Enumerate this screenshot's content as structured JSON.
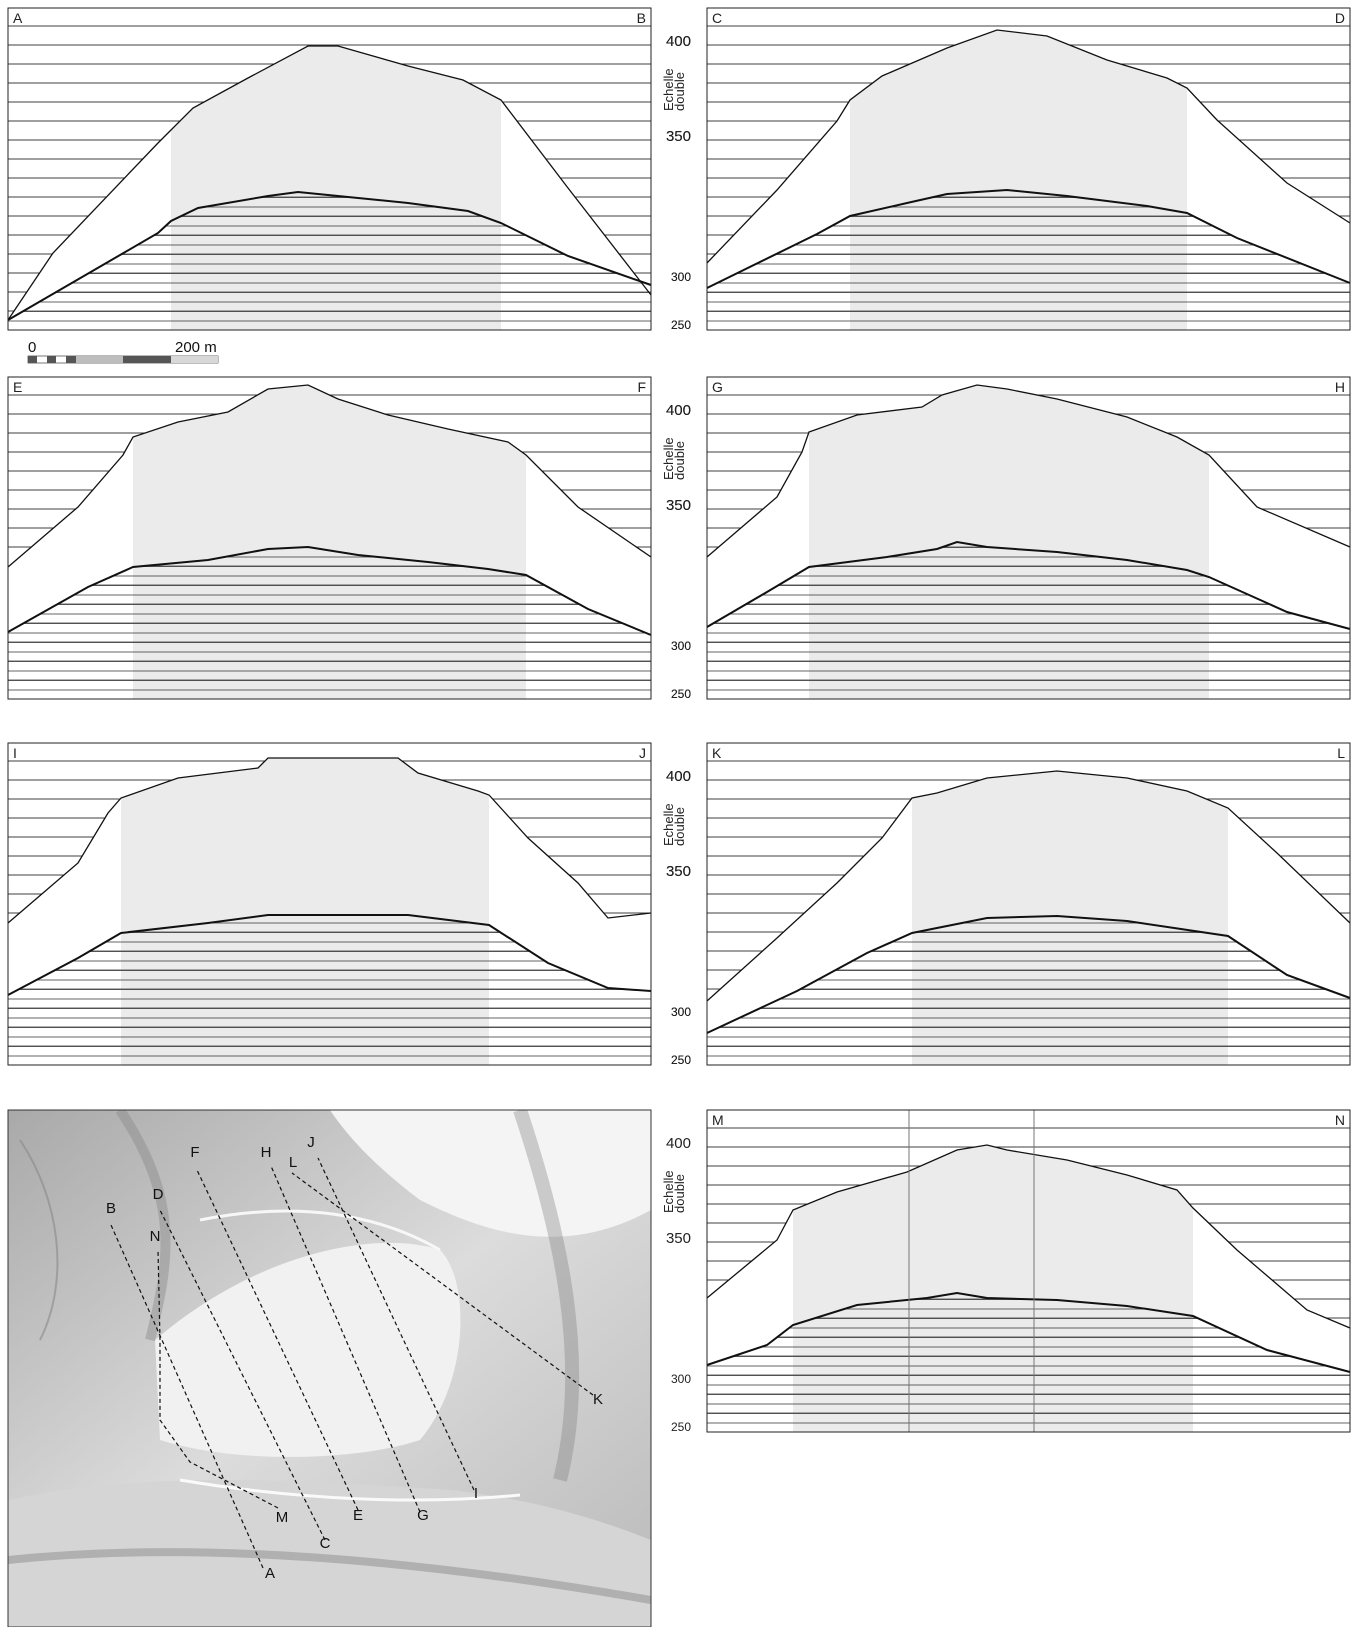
{
  "figure": {
    "scale_bar": {
      "label_start": "0",
      "label_end": "200 m"
    },
    "scale_text": "Echelle double",
    "scale_text_lines": [
      "Echelle",
      "double"
    ],
    "profiles": [
      {
        "start": "A",
        "end": "B",
        "ticks": [
          "400",
          "350",
          "300",
          "250"
        ]
      },
      {
        "start": "C",
        "end": "D",
        "ticks": [
          "400",
          "350",
          "300",
          "250"
        ]
      },
      {
        "start": "E",
        "end": "F",
        "ticks": [
          "400",
          "350",
          "300",
          "250"
        ]
      },
      {
        "start": "G",
        "end": "H",
        "ticks": [
          "400",
          "350",
          "300",
          "250"
        ]
      },
      {
        "start": "I",
        "end": "J",
        "ticks": [
          "400",
          "350",
          "300",
          "250"
        ]
      },
      {
        "start": "K",
        "end": "L",
        "ticks": [
          "400",
          "350",
          "300",
          "250"
        ]
      },
      {
        "start": "M",
        "end": "N",
        "ticks": [
          "400",
          "350",
          "300",
          "250"
        ]
      }
    ],
    "map": {
      "transects": [
        {
          "from": "A",
          "to": "B"
        },
        {
          "from": "C",
          "to": "D"
        },
        {
          "from": "E",
          "to": "F"
        },
        {
          "from": "G",
          "to": "H"
        },
        {
          "from": "I",
          "to": "J"
        },
        {
          "from": "K",
          "to": "L"
        },
        {
          "from": "M",
          "to": "N"
        }
      ]
    }
  }
}
